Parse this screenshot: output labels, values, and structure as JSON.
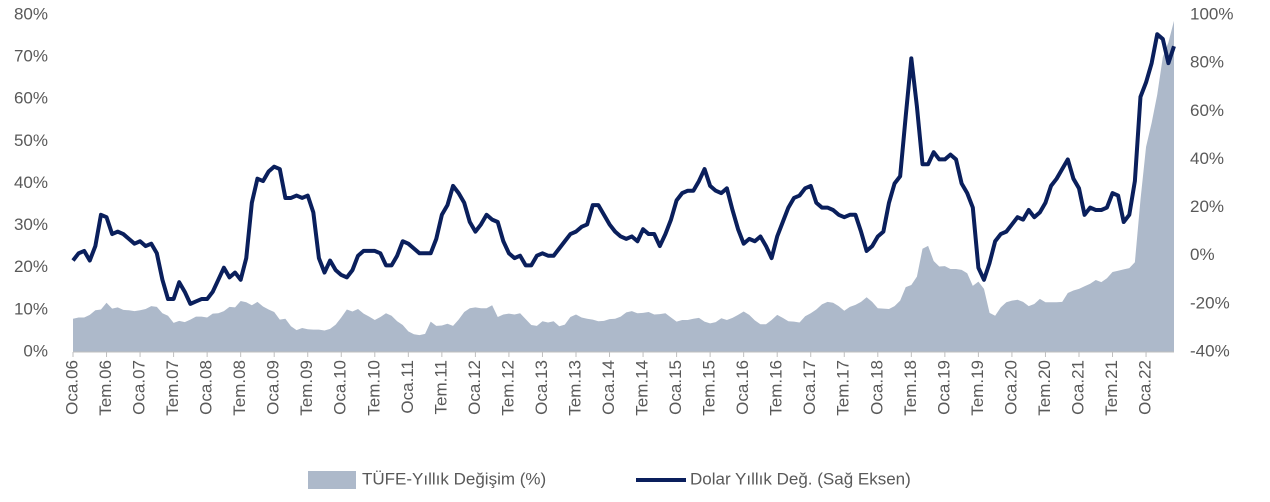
{
  "chart_data": {
    "type": "area_line",
    "categories": [
      "Oca.06",
      null,
      null,
      null,
      null,
      null,
      "Tem.06",
      null,
      null,
      null,
      null,
      null,
      "Oca.07",
      null,
      null,
      null,
      null,
      null,
      "Tem.07",
      null,
      null,
      null,
      null,
      null,
      "Oca.08",
      null,
      null,
      null,
      null,
      null,
      "Tem.08",
      null,
      null,
      null,
      null,
      null,
      "Oca.09",
      null,
      null,
      null,
      null,
      null,
      "Tem.09",
      null,
      null,
      null,
      null,
      null,
      "Oca.10",
      null,
      null,
      null,
      null,
      null,
      "Tem.10",
      null,
      null,
      null,
      null,
      null,
      "Oca.11",
      null,
      null,
      null,
      null,
      null,
      "Tem.11",
      null,
      null,
      null,
      null,
      null,
      "Oca.12",
      null,
      null,
      null,
      null,
      null,
      "Tem.12",
      null,
      null,
      null,
      null,
      null,
      "Oca.13",
      null,
      null,
      null,
      null,
      null,
      "Tem.13",
      null,
      null,
      null,
      null,
      null,
      "Oca.14",
      null,
      null,
      null,
      null,
      null,
      "Tem.14",
      null,
      null,
      null,
      null,
      null,
      "Oca.15",
      null,
      null,
      null,
      null,
      null,
      "Tem.15",
      null,
      null,
      null,
      null,
      null,
      "Oca.16",
      null,
      null,
      null,
      null,
      null,
      "Tem.16",
      null,
      null,
      null,
      null,
      null,
      "Oca.17",
      null,
      null,
      null,
      null,
      null,
      "Tem.17",
      null,
      null,
      null,
      null,
      null,
      "Oca.18",
      null,
      null,
      null,
      null,
      null,
      "Tem.18",
      null,
      null,
      null,
      null,
      null,
      "Oca.19",
      null,
      null,
      null,
      null,
      null,
      "Tem.19",
      null,
      null,
      null,
      null,
      null,
      "Oca.20",
      null,
      null,
      null,
      null,
      null,
      "Tem.20",
      null,
      null,
      null,
      null,
      null,
      "Oca.21",
      null,
      null,
      null,
      null,
      null,
      "Tem.21",
      null,
      null,
      null,
      null,
      null,
      "Oca.22",
      null,
      null,
      null,
      null,
      null
    ],
    "series": [
      {
        "name": "TÜFE-Yıllık Değişim (%)",
        "kind": "area",
        "color": "#adb9ca",
        "axis": "y",
        "values": [
          7.9,
          8.2,
          8.2,
          8.8,
          9.9,
          10.1,
          11.7,
          10.3,
          10.6,
          10.0,
          9.9,
          9.7,
          9.9,
          10.2,
          10.9,
          10.7,
          9.2,
          8.6,
          6.9,
          7.4,
          7.1,
          7.7,
          8.4,
          8.4,
          8.2,
          9.1,
          9.2,
          9.7,
          10.7,
          10.6,
          12.1,
          11.8,
          11.1,
          11.9,
          10.8,
          10.1,
          9.5,
          7.7,
          7.9,
          6.1,
          5.2,
          5.7,
          5.4,
          5.3,
          5.3,
          5.1,
          5.5,
          6.5,
          8.2,
          10.1,
          9.6,
          10.2,
          9.1,
          8.4,
          7.6,
          8.3,
          9.2,
          8.6,
          7.3,
          6.4,
          4.9,
          4.2,
          4.0,
          4.3,
          7.2,
          6.2,
          6.3,
          6.7,
          6.2,
          7.7,
          9.5,
          10.4,
          10.6,
          10.4,
          10.4,
          11.1,
          8.3,
          8.9,
          9.1,
          8.9,
          9.2,
          7.8,
          6.4,
          6.2,
          7.3,
          7.0,
          7.3,
          6.1,
          6.5,
          8.3,
          8.9,
          8.2,
          7.9,
          7.7,
          7.3,
          7.4,
          7.8,
          7.9,
          8.4,
          9.4,
          9.7,
          9.2,
          9.3,
          9.5,
          8.9,
          9.0,
          9.2,
          8.2,
          7.2,
          7.6,
          7.6,
          7.9,
          8.1,
          7.2,
          6.8,
          7.1,
          8.0,
          7.6,
          8.1,
          8.8,
          9.6,
          8.8,
          7.5,
          6.6,
          6.6,
          7.6,
          8.8,
          8.1,
          7.3,
          7.2,
          7.0,
          8.5,
          9.2,
          10.1,
          11.3,
          11.9,
          11.7,
          10.9,
          9.8,
          10.7,
          11.2,
          11.9,
          13.0,
          11.9,
          10.4,
          10.3,
          10.2,
          10.9,
          12.2,
          15.4,
          15.9,
          17.9,
          24.5,
          25.2,
          21.6,
          20.3,
          20.4,
          19.7,
          19.7,
          19.5,
          18.7,
          15.7,
          16.7,
          15.0,
          9.3,
          8.6,
          10.6,
          11.8,
          12.2,
          12.4,
          11.9,
          10.9,
          11.4,
          12.6,
          11.8,
          11.8,
          11.8,
          11.9,
          14.0,
          14.6,
          15.0,
          15.6,
          16.2,
          17.1,
          16.6,
          17.5,
          19.0,
          19.3,
          19.6,
          19.9,
          21.3,
          36.1,
          48.7,
          54.4,
          61.1,
          70.0,
          73.5,
          78.6
        ]
      },
      {
        "name": "Dolar Yıllık Değ. (Sağ Eksen)",
        "kind": "line",
        "color": "#0a1f5c",
        "axis": "y2",
        "values": [
          -2,
          1,
          2,
          -2,
          4,
          17,
          16,
          9,
          10,
          9,
          7,
          5,
          6,
          4,
          5,
          1,
          -10,
          -18,
          -18,
          -11,
          -15,
          -20,
          -19,
          -18,
          -18,
          -15,
          -10,
          -5,
          -9,
          -7,
          -10,
          -1,
          22,
          32,
          31,
          35,
          37,
          36,
          24,
          24,
          25,
          24,
          25,
          18,
          -1,
          -7,
          -2,
          -6,
          -8,
          -9,
          -6,
          0,
          2,
          2,
          2,
          1,
          -4,
          -4,
          0,
          6,
          5,
          3,
          1,
          1,
          1,
          7,
          17,
          21,
          29,
          26,
          22,
          14,
          10,
          13,
          17,
          15,
          14,
          6,
          1,
          -1,
          0,
          -4,
          -4,
          0,
          1,
          0,
          0,
          3,
          6,
          9,
          10,
          12,
          13,
          21,
          21,
          17,
          13,
          10,
          8,
          7,
          8,
          6,
          11,
          9,
          9,
          4,
          9,
          15,
          23,
          26,
          27,
          27,
          31,
          36,
          29,
          27,
          26,
          28,
          19,
          11,
          5,
          7,
          6,
          8,
          4,
          -1,
          8,
          14,
          20,
          24,
          25,
          28,
          29,
          22,
          20,
          20,
          19,
          17,
          16,
          17,
          17,
          10,
          2,
          4,
          8,
          10,
          22,
          30,
          33,
          58,
          82,
          62,
          38,
          38,
          43,
          40,
          40,
          42,
          40,
          30,
          26,
          20,
          -5,
          -10,
          -3,
          6,
          9,
          10,
          13,
          16,
          15,
          19,
          16,
          18,
          22,
          29,
          32,
          36,
          40,
          32,
          28,
          17,
          20,
          19,
          19,
          20,
          26,
          25,
          14,
          17,
          31,
          66,
          72,
          80,
          92,
          90,
          80,
          87
        ]
      }
    ],
    "ylim": [
      0,
      80
    ],
    "yticks": [
      {
        "value": 0,
        "label": "0%"
      },
      {
        "value": 10,
        "label": "10%"
      },
      {
        "value": 20,
        "label": "20%"
      },
      {
        "value": 30,
        "label": "30%"
      },
      {
        "value": 40,
        "label": "40%"
      },
      {
        "value": 50,
        "label": "50%"
      },
      {
        "value": 60,
        "label": "60%"
      },
      {
        "value": 70,
        "label": "70%"
      },
      {
        "value": 80,
        "label": "80%"
      }
    ],
    "y2lim": [
      -40,
      100
    ],
    "y2ticks": [
      {
        "value": -40,
        "label": "-40%"
      },
      {
        "value": -20,
        "label": "-20%"
      },
      {
        "value": 0,
        "label": "0%"
      },
      {
        "value": 20,
        "label": "20%"
      },
      {
        "value": 40,
        "label": "40%"
      },
      {
        "value": 60,
        "label": "60%"
      },
      {
        "value": 80,
        "label": "80%"
      },
      {
        "value": 100,
        "label": "100%"
      }
    ],
    "legend": "bottom"
  }
}
